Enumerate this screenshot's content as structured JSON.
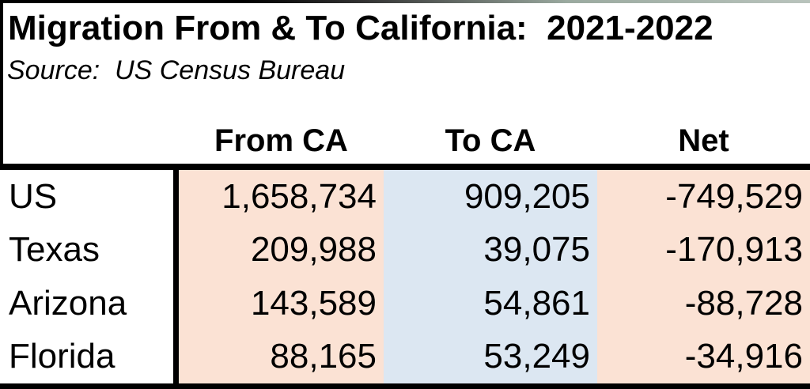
{
  "header": {
    "title": "Migration From & To California:  2021-2022",
    "source": "Source:  US Census Bureau"
  },
  "table": {
    "columns": [
      "From CA",
      "To CA",
      "Net"
    ],
    "rows": [
      {
        "label": "US",
        "from_ca": "1,658,734",
        "to_ca": "909,205",
        "net": "-749,529"
      },
      {
        "label": "Texas",
        "from_ca": "209,988",
        "to_ca": "39,075",
        "net": "-170,913"
      },
      {
        "label": "Arizona",
        "from_ca": "143,589",
        "to_ca": "54,861",
        "net": "-88,728"
      },
      {
        "label": "Florida",
        "from_ca": "88,165",
        "to_ca": "53,249",
        "net": "-34,916"
      }
    ],
    "colors": {
      "from_ca_bg": "#FBE2D4",
      "to_ca_bg": "#DCE7F2",
      "net_bg": "#FBE2D4",
      "border": "#000000"
    }
  },
  "chart_data": {
    "type": "table",
    "title": "Migration From & To California: 2021-2022",
    "source": "US Census Bureau",
    "columns": [
      "From CA",
      "To CA",
      "Net"
    ],
    "row_labels": [
      "US",
      "Texas",
      "Arizona",
      "Florida"
    ],
    "values": [
      {
        "region": "US",
        "from_ca": 1658734,
        "to_ca": 909205,
        "net": -749529
      },
      {
        "region": "Texas",
        "from_ca": 209988,
        "to_ca": 39075,
        "net": -170913
      },
      {
        "region": "Arizona",
        "from_ca": 143589,
        "to_ca": 54861,
        "net": -88728
      },
      {
        "region": "Florida",
        "from_ca": 88165,
        "to_ca": 53249,
        "net": -34916
      }
    ]
  }
}
